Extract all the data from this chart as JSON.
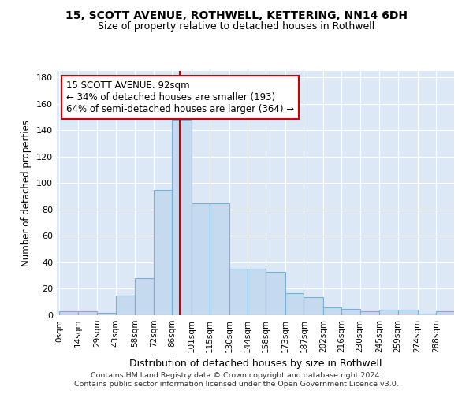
{
  "title1": "15, SCOTT AVENUE, ROTHWELL, KETTERING, NN14 6DH",
  "title2": "Size of property relative to detached houses in Rothwell",
  "xlabel": "Distribution of detached houses by size in Rothwell",
  "ylabel": "Number of detached properties",
  "bin_edges": [
    0,
    14,
    29,
    43,
    58,
    72,
    86,
    101,
    115,
    130,
    144,
    158,
    173,
    187,
    202,
    216,
    230,
    245,
    259,
    274,
    288,
    302
  ],
  "bar_heights": [
    3,
    3,
    2,
    15,
    28,
    95,
    148,
    85,
    85,
    35,
    35,
    33,
    17,
    14,
    6,
    5,
    3,
    4,
    4,
    1,
    3
  ],
  "bar_color": "#c5d9ef",
  "bar_edge_color": "#7aafd4",
  "property_size": 92,
  "red_line_color": "#cc0000",
  "annotation_line1": "15 SCOTT AVENUE: 92sqm",
  "annotation_line2": "← 34% of detached houses are smaller (193)",
  "annotation_line3": "64% of semi-detached houses are larger (364) →",
  "annotation_box_color": "#ffffff",
  "annotation_box_edge": "#cc0000",
  "yticks": [
    0,
    20,
    40,
    60,
    80,
    100,
    120,
    140,
    160,
    180
  ],
  "ylim": [
    0,
    185
  ],
  "xlim": [
    -2,
    302
  ],
  "background_color": "#dce8f5",
  "grid_color": "#ffffff",
  "footer_line1": "Contains HM Land Registry data © Crown copyright and database right 2024.",
  "footer_line2": "Contains public sector information licensed under the Open Government Licence v3.0."
}
